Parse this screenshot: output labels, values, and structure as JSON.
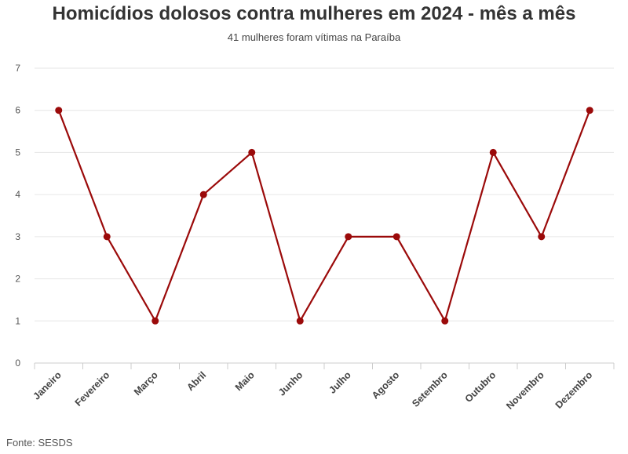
{
  "chart_data": {
    "type": "line",
    "title": "Homicídios dolosos contra mulheres em 2024 - mês a mês",
    "subtitle": "41 mulheres foram vítimas na Paraíba",
    "categories": [
      "Janeiro",
      "Fevereiro",
      "Março",
      "Abril",
      "Maio",
      "Junho",
      "Julho",
      "Agosto",
      "Setembro",
      "Outubro",
      "Novembro",
      "Dezembro"
    ],
    "series": [
      {
        "values": [
          6,
          3,
          1,
          4,
          5,
          1,
          3,
          3,
          1,
          5,
          3,
          6
        ],
        "color": "#9b0a0a"
      }
    ],
    "ylim": [
      0,
      7
    ],
    "yticks": [
      "0",
      "1",
      "2",
      "3",
      "4",
      "5",
      "6",
      "7"
    ],
    "grid": true,
    "legend": "none",
    "source": "Fonte: SESDS"
  }
}
